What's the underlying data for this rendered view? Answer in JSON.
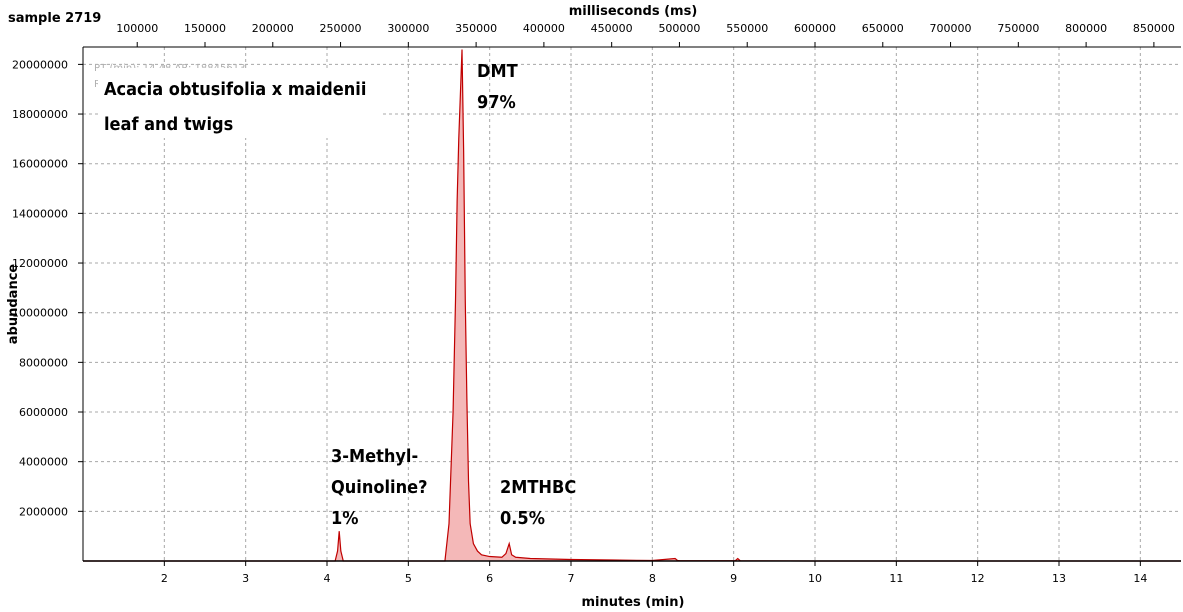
{
  "sample_label": "sample 2719",
  "faint_header": {
    "line1": "RT (min): 14.48 AR: 18845613",
    "line2": "R"
  },
  "chart_data": {
    "type": "line",
    "title": "Acacia obtusifolia x maidenii leaf and twigs",
    "title_lines": [
      "Acacia obtusifolia x maidenii",
      "leaf and twigs"
    ],
    "xlabel": "minutes (min)",
    "ylabel": "abundance",
    "x2label": "milliseconds (ms)",
    "xlim": [
      1.0,
      14.5
    ],
    "ylim": [
      0,
      20700000
    ],
    "x_ticks": [
      2,
      3,
      4,
      5,
      6,
      7,
      8,
      9,
      10,
      11,
      12,
      13,
      14
    ],
    "x_tick_labels": [
      "2",
      "3",
      "4",
      "5",
      "6",
      "7",
      "8",
      "9",
      "10",
      "11",
      "12",
      "13",
      "14"
    ],
    "x2_ticks": [
      100000,
      150000,
      200000,
      250000,
      300000,
      350000,
      400000,
      450000,
      500000,
      550000,
      600000,
      650000,
      700000,
      750000,
      800000,
      850000
    ],
    "x2_tick_labels": [
      "100000",
      "150000",
      "200000",
      "250000",
      "300000",
      "350000",
      "400000",
      "450000",
      "500000",
      "550000",
      "600000",
      "650000",
      "700000",
      "750000",
      "800000",
      "850000"
    ],
    "y_ticks": [
      2000000,
      4000000,
      6000000,
      8000000,
      10000000,
      12000000,
      14000000,
      16000000,
      18000000,
      20000000
    ],
    "y_tick_labels": [
      "2000000",
      "4000000",
      "6000000",
      "8000000",
      "10000000",
      "12000000",
      "14000000",
      "16000000",
      "18000000",
      "20000000"
    ],
    "grid": true,
    "series": [
      {
        "name": "chromatogram",
        "color": "#c00000",
        "fill": "#f4b8b8",
        "x": [
          1.0,
          4.1,
          4.13,
          4.15,
          4.17,
          4.2,
          5.45,
          5.5,
          5.55,
          5.58,
          5.6,
          5.62,
          5.64,
          5.66,
          5.68,
          5.7,
          5.72,
          5.74,
          5.76,
          5.8,
          5.85,
          5.9,
          6.0,
          6.15,
          6.2,
          6.24,
          6.27,
          6.32,
          6.5,
          7.0,
          7.5,
          8.0,
          8.28,
          8.31,
          8.34,
          9.02,
          9.05,
          9.08,
          10.0,
          14.5
        ],
        "y": [
          0,
          0,
          400000,
          1200000,
          400000,
          0,
          0,
          1500000,
          6000000,
          10500000,
          14500000,
          17000000,
          18800000,
          20600000,
          16500000,
          10500000,
          6500000,
          3200000,
          1500000,
          700000,
          400000,
          250000,
          180000,
          150000,
          300000,
          700000,
          250000,
          150000,
          100000,
          60000,
          40000,
          20000,
          100000,
          20000,
          10000,
          10000,
          100000,
          10000,
          0,
          0
        ]
      }
    ],
    "annotations": [
      {
        "lines": [
          "DMT",
          "97%"
        ]
      },
      {
        "lines": [
          "3-Methyl-",
          "Quinoline?",
          "1%"
        ]
      },
      {
        "lines": [
          "2MTHBC",
          "0.5%"
        ]
      }
    ]
  }
}
